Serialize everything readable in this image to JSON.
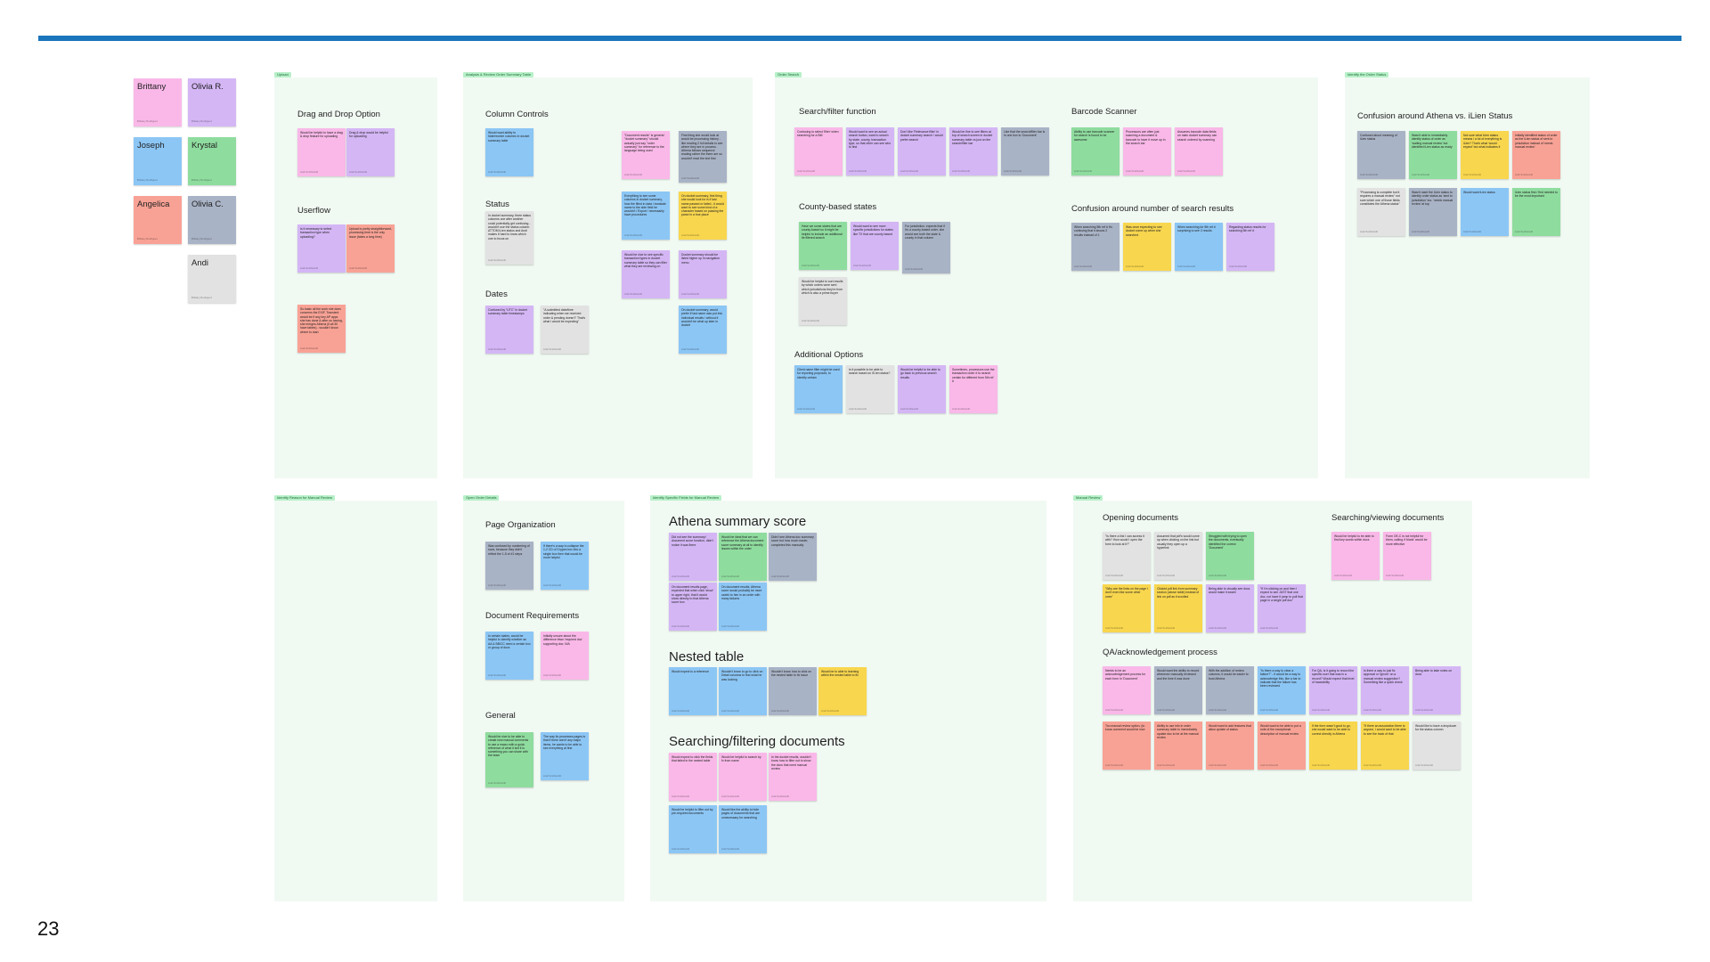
{
  "page_number": "23",
  "colors": {
    "accent_bar": "#1b75bb",
    "board_bg": "#f1f9f3",
    "pink": "#f9b8e8",
    "purple": "#d4b6f5",
    "blue": "#8cc6f5",
    "green": "#8fdc9f",
    "red": "#f8a295",
    "gray": "#a9b3c6",
    "lightgray": "#e2e2e2",
    "yellow": "#f8d64e"
  },
  "participants": [
    "Brittany",
    "Olivia R.",
    "Joseph",
    "Krystal",
    "Angelica",
    "Olivia C.",
    "Andi"
  ],
  "boards": {
    "upload": {
      "tag": "Upload",
      "drag_drop": "Drag and Drop Option",
      "userflow": "Userflow",
      "notes": [
        "Would be helpful to have a drag & drop feature for uploading",
        "Drag & drop would be helpful for uploading",
        "Is it necessary to select transaction type when uploading?",
        "Upload is pretty straightforward, processing time is the only issue (takes a long time)",
        "So basic all the work she does concerns the EXIF. Transient would be if any key AP apps she has done & after us having, she merges Athena (it all 30 have tables) - wouldn't know where to start"
      ]
    },
    "analysis": {
      "tag": "Analysis & Review Order Summary Table",
      "column_controls": "Column Controls",
      "status": "Status",
      "dates": "Dates",
      "notes": [
        "Would want ability to hide/reorder columns in docket summary table",
        "In docket summary, three status columns one after another could potentially get confusing - wouldn't use the status column. ATTOM iLien status and Andi makes it hard to know which one to focus on",
        "Confused by \"UTC\" in docket summary table timestamps",
        "\"A submitted date/time indicating when we received order & pending doesn't\" That's what I would be expecting\"",
        "\"Document results\" is generic/ \"docket summary\" should actually just say \"order summary\" for reference to the language being used",
        "First thing she would look at would be processing history - like reading 2 full details to see where they are in process. Athena follows sequence reading rather the there are so wouldn't read the text first",
        "Everything to see some columns in docket summary, how the filled in data / translate name to the side field he wouldn't / Export / necessarily have procedures",
        "On docket summary, first thing she would look for is if last name passed or failed - it would want to see some kind of a character based on passing the parse in a true place",
        "Would be nice to see specific transaction types in docket summary table so they can filter what they are reviewing on",
        "Docket summary should be listed higher up in navigation menu",
        "On docket summary, would prefer if last name was put into individual results / without it wouldn't be what up later in docket"
      ]
    },
    "order_search": {
      "tag": "Order Search",
      "search_filter": "Search/filter function",
      "barcode": "Barcode Scanner",
      "county": "County-based states",
      "confusion_count": "Confusion around number of search results",
      "additional": "Additional Options",
      "notes": [
        "Confusing to select 'filter' when searching for a BM",
        "Would want to see an actual search button, want to search by state, county, transaction type, so that other can see who to find",
        "Don't like 'Relevance filter' in docket summary search / would prefer search",
        "Would be fine to see filters at top of search screen in docket summary table vs just on the search/filter bar",
        "Like that the search/filter bar is in one box to 'Document'",
        "Ability to use barcode scanner for search is found to be awesome",
        "Processors are often just scanning a document & barcode to have it move up in the search bar",
        "Assumes barcode data fields on main docket summary can search ordered by scanning",
        "Have we some states that are county-based so it might be helpful to include an additional tie filtered search",
        "Would want to see more specific jurisdictions for states like TX that are county based",
        "For jurisdiction, expects that if it's a county-based order, she would see both the state & county in that column",
        "Would be helpful to sort results by which orders were sent which jurisdictions they're from which is also a prime buyer",
        "When searching 5th ref # it's confusing that it shows 2 results instead of 1",
        "Was once expecting to see docket come up when she searched",
        "When searching for 5th ref # surprising to see 2 results",
        "Regarding status results for searching 5th ref #",
        "Client name filter might be used for reporting purposes, to identify certain",
        "Is it possible to be able to search based on iS.ien status?",
        "Would be helpful to be able to go back to previous search results",
        "Sometimes, processors use the transaction order # to search certain for different from 5th ref #"
      ]
    },
    "order_status": {
      "tag": "Identify the Order Status",
      "confusion": "Confusion around Athena vs. iLien Status",
      "notes": [
        "Confused about meaning of iLien status",
        "Wasn't able to immediately identify status of order as 'waiting manual review' but identified iLien status as ready",
        "Not sure what iLien status means / a lot of everything is iLien? That's what 'would expect' but what indicates it",
        "Initially identified status of order as the iLien status of sent to jurisdiction instead of 'needs manual review'",
        "\"Processing is complete but it requires a manual review\" not sure which one of those fields constitutes the Athena status\"",
        "Wasn't want the iLien status to identify order status as 'sent to jurisdiction' too. 'needs manual review' at top",
        "Would want iLien status",
        "iLien status first / first needed to be the most important"
      ]
    },
    "reason_manual": {
      "tag": "Identify Reason for Manual Review"
    },
    "open_order": {
      "tag": "Open Order Details",
      "page_org": "Page Organization",
      "doc_req": "Document Requirements",
      "general": "General",
      "notes": [
        "Was confused by numbering of rows, because they didn't reflect the 1-5 of #1 steps",
        "If there's a way to collapse the 1-2 CD of 3 types box into a single box then that would be more helpful",
        "In certain states, would be helpful to identify whether an AA & BB/CC need a certain box or group of docs",
        "Initially unsure about the difference btwn 'required doc' supporting doc; N/A",
        "Would be nice to be able to create new manual comments to use a macro with a quick reference of what it is/if it is something you can share with the team",
        "The way its processes pages is that if there aren't any major items, he wants to be able to see everything at first"
      ]
    },
    "specific_fields": {
      "tag": "Identify Specific Fields for Manual Review",
      "athena": "Athena summary score",
      "nested": "Nested table",
      "searching": "Searching/filtering documents",
      "notes": [
        "Did not see the summary/ document score function, didn't notice it was there",
        "Would be ideal that we can reference the Athena document score summary at all to identify issues within the order",
        "Didn't see Athena doc summary score but how much easier, completed this manually",
        "On document results page, expected that when click 'show' to upper right, that it would show directly to that Athena score box",
        "On document results, Athena score would probably be more useful to him in an order with many failures",
        "Would expect is a reference",
        "Wouldn't know to go to click on Detail columns to find what he was looking",
        "Wouldn't know how to click on the nested table to fix issue",
        "Would be to able to learning within the nested table to fix",
        "Would expect to click the fields that failed in the nested table",
        "Would be helpful to search by fx from name",
        "In the docket results, wouldn't know how to filter out to show the docs that need manual review",
        "Would be helpful to filter out by pre-required documents",
        "Would like the ability to hide pages of documents that are unnecessary for searching",
        "There's a lot of info Athena is looking at that is not necessarily pertinent"
      ]
    },
    "manual_review": {
      "tag": "Manual Review",
      "opening": "Opening documents",
      "viewing": "Searching/viewing documents",
      "qa": "QA/acknowledgement process",
      "notes": [
        "\"Is there a link I can access it with? How would I open the form to look at it?\"",
        "Assumed that pdf's would come up when clicking on the link but usually they open up a hyperlink",
        "Struggled with trying to open the documents, eventually identified the correct 'Document'",
        "\"Why are the links on the page I don't even like some other ones\"",
        "Clicked pdf link from summary section (above table) instead of link on pdf as it scrolled",
        "Being able to visually see docs would make it easier",
        "\"If I'm clicking on and then I expect to see JUST that one doc, not have it jump to pull that page in a single pdf doc\"",
        "Would be helpful to be able to find key words within docs",
        "Form OE-C is not helpful for them, calling it 'blank' would be more effective",
        "Needs to be an acknowledgement process for each form in 'Document'",
        "Would want the ability to record whenever manually reviewed and the time it was done",
        "With the addition of review columns, it would be easier to trust Athena",
        "\"Is there a way to clear a failure?\" - if would be a way to acknowledge this, like a bar to indicate that the failure has been reviewed",
        "For QA, is it going to record the specific user that was in a record? Would expect that level of traceability",
        "Is there a way to just fix approval or 'ignore' on a manual review suggestion? Something like a quick check",
        "Being able to take notes on docs",
        "Too manual review option, (to know comment would be nice",
        "Ability to use info in order summary table to immediately update doc to be at the manual review",
        "Would want to add features that allow update of status",
        "Would want to be able to put a note of the exceptional description of manual review",
        "If the form wasn't good to go, she would want to be able to correct directly in Athena",
        "\"If there an association there is anyone, I would want to be able to see the track of that",
        "Would like to have a dropdown for the status column"
      ]
    }
  }
}
